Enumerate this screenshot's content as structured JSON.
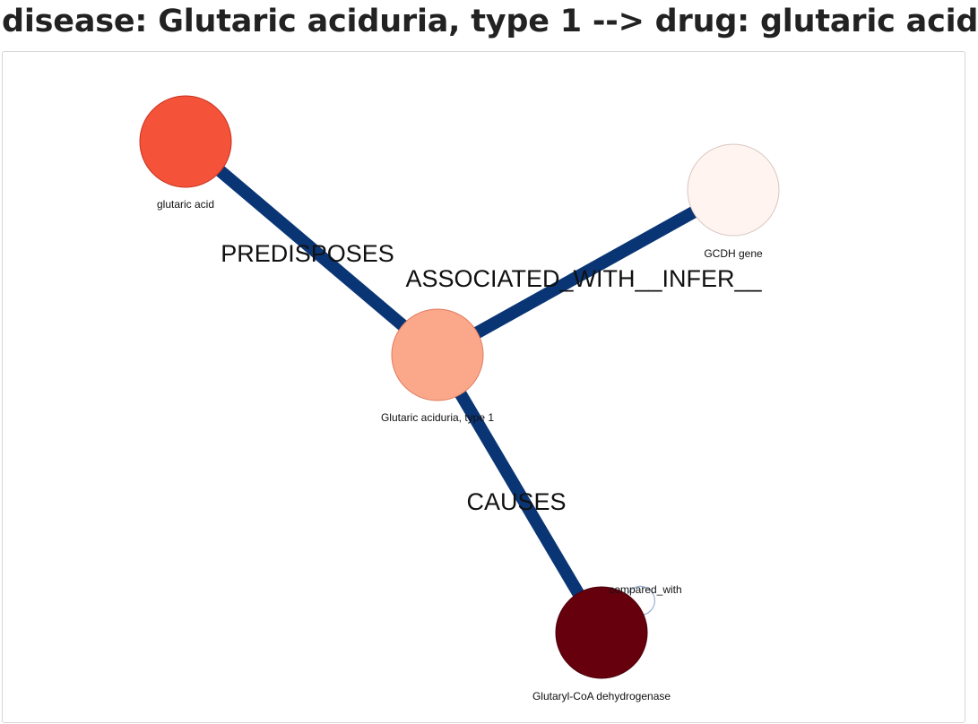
{
  "title": "disease: Glutaric aciduria, type 1 --> drug: glutaric acid",
  "graph": {
    "edge_color": "#0a3575",
    "nodes": [
      {
        "id": "glutaric_acid",
        "label": "glutaric acid",
        "color": "#f4533a",
        "stroke": "#c8301e"
      },
      {
        "id": "gcdh_gene",
        "label": "GCDH gene",
        "color": "#fff4ef",
        "stroke": "#d8c6c0"
      },
      {
        "id": "disease",
        "label": "Glutaric aciduria, type 1",
        "color": "#fba88a",
        "stroke": "#e07a5e"
      },
      {
        "id": "enzyme",
        "label": "Glutaryl-CoA dehydrogenase",
        "color": "#67000d",
        "stroke": "#4a0009"
      }
    ],
    "edges": [
      {
        "source": "glutaric_acid",
        "target": "disease",
        "label": "PREDISPOSES"
      },
      {
        "source": "gcdh_gene",
        "target": "disease",
        "label": "ASSOCIATED_WITH__INFER__"
      },
      {
        "source": "disease",
        "target": "enzyme",
        "label": "CAUSES"
      },
      {
        "source": "enzyme",
        "target": "enzyme",
        "label": "compared_with"
      }
    ]
  }
}
